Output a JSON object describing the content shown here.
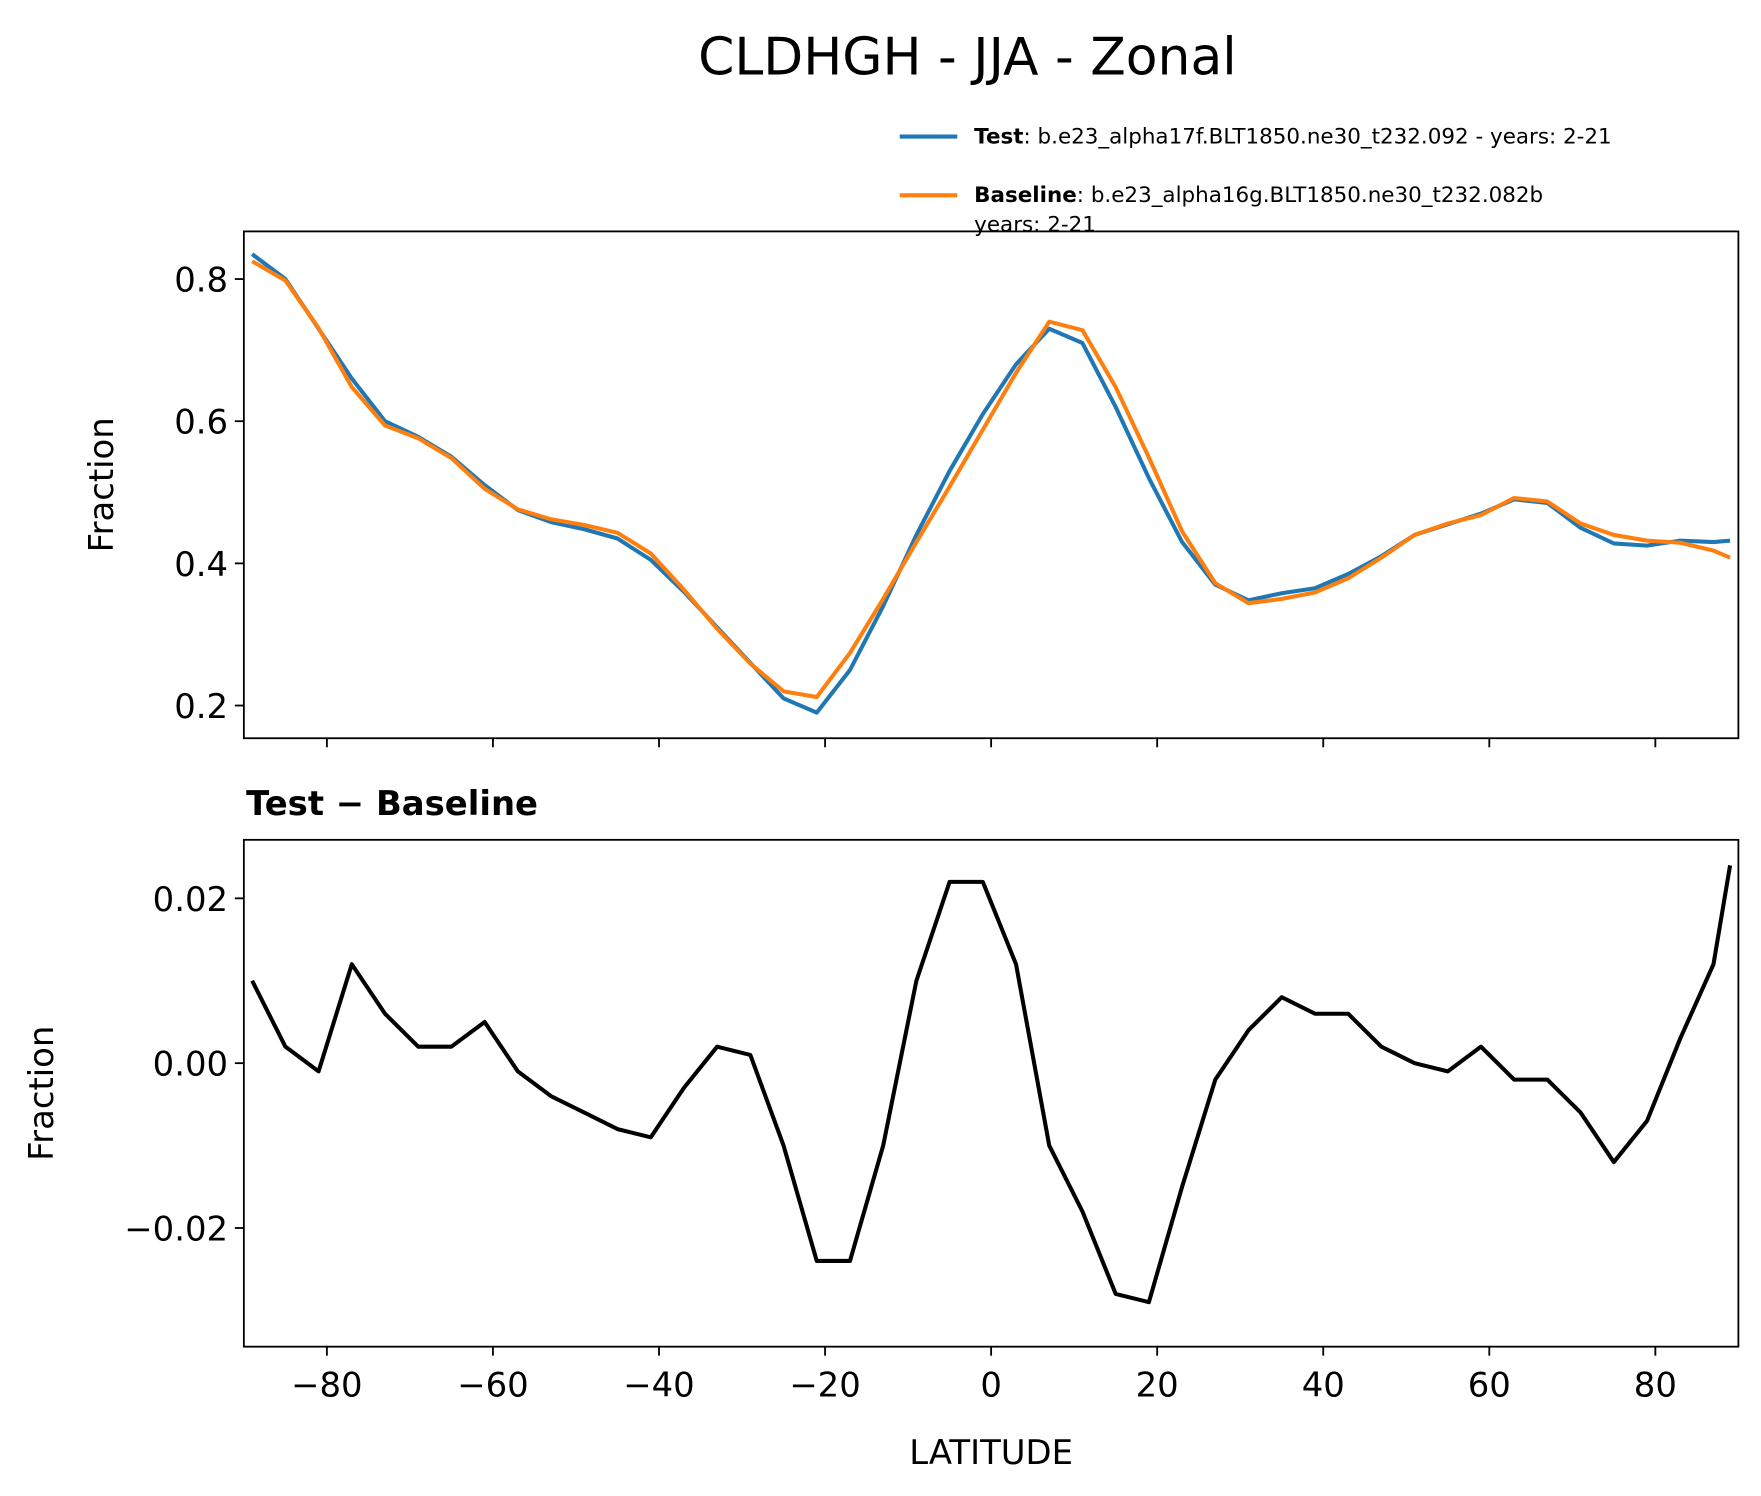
{
  "chart_data": [
    {
      "type": "line",
      "title": "CLDHGH - JJA - Zonal",
      "ylabel": "Fraction",
      "legend": "above right",
      "xticklabels": false,
      "x": [
        -89,
        -85,
        -81,
        -77,
        -73,
        -69,
        -65,
        -61,
        -57,
        -53,
        -49,
        -45,
        -41,
        -37,
        -33,
        -29,
        -25,
        -21,
        -17,
        -13,
        -9,
        -5,
        -1,
        3,
        7,
        11,
        15,
        19,
        23,
        27,
        31,
        35,
        39,
        43,
        47,
        51,
        55,
        59,
        63,
        67,
        71,
        75,
        79,
        83,
        87,
        89
      ],
      "series": [
        {
          "name": "Test",
          "description": [
            ": b.e23_alpha17f.BLT1850.ne30_t232.092 - years: 2-21"
          ],
          "color": "#1f77b4",
          "values": [
            0.835,
            0.8,
            0.73,
            0.66,
            0.6,
            0.578,
            0.55,
            0.51,
            0.475,
            0.458,
            0.448,
            0.435,
            0.405,
            0.36,
            0.31,
            0.26,
            0.21,
            0.19,
            0.25,
            0.34,
            0.44,
            0.53,
            0.61,
            0.68,
            0.73,
            0.71,
            0.62,
            0.52,
            0.43,
            0.37,
            0.348,
            0.358,
            0.365,
            0.385,
            0.41,
            0.44,
            0.455,
            0.47,
            0.49,
            0.485,
            0.45,
            0.428,
            0.425,
            0.432,
            0.43,
            0.432
          ]
        },
        {
          "name": "Baseline",
          "description": [
            ": b.e23_alpha16g.BLT1850.ne30_t232.082b",
            "years: 2-21"
          ],
          "color": "#ff7f0e",
          "values": [
            0.825,
            0.798,
            0.731,
            0.648,
            0.594,
            0.576,
            0.548,
            0.505,
            0.476,
            0.462,
            0.454,
            0.443,
            0.414,
            0.363,
            0.308,
            0.259,
            0.22,
            0.212,
            0.274,
            0.35,
            0.43,
            0.508,
            0.588,
            0.668,
            0.74,
            0.728,
            0.648,
            0.549,
            0.445,
            0.372,
            0.344,
            0.35,
            0.359,
            0.379,
            0.408,
            0.44,
            0.456,
            0.468,
            0.492,
            0.487,
            0.456,
            0.44,
            0.432,
            0.429,
            0.418,
            0.408
          ]
        }
      ],
      "xlim": [
        -90,
        90
      ],
      "xticks": [
        -80,
        -60,
        -40,
        -20,
        0,
        20,
        40,
        60,
        80
      ],
      "ylim": [
        0.154,
        0.867
      ],
      "yticks": [
        0.2,
        0.4,
        0.6,
        0.8
      ]
    },
    {
      "type": "line",
      "title": "Test − Baseline",
      "xlabel": "LATITUDE",
      "ylabel": "Fraction",
      "x": [
        -89,
        -85,
        -81,
        -77,
        -73,
        -69,
        -65,
        -61,
        -57,
        -53,
        -49,
        -45,
        -41,
        -37,
        -33,
        -29,
        -25,
        -21,
        -17,
        -13,
        -9,
        -5,
        -1,
        3,
        7,
        11,
        15,
        19,
        23,
        27,
        31,
        35,
        39,
        43,
        47,
        51,
        55,
        59,
        63,
        67,
        71,
        75,
        79,
        83,
        87,
        89
      ],
      "series": [
        {
          "color": "#000000",
          "values": [
            0.01,
            0.002,
            -0.001,
            0.012,
            0.006,
            0.002,
            0.002,
            0.005,
            -0.001,
            -0.004,
            -0.006,
            -0.008,
            -0.009,
            -0.003,
            0.002,
            0.001,
            -0.01,
            -0.024,
            -0.024,
            -0.01,
            0.01,
            0.022,
            0.022,
            0.012,
            -0.01,
            -0.018,
            -0.028,
            -0.029,
            -0.015,
            -0.002,
            0.004,
            0.008,
            0.006,
            0.006,
            0.002,
            0.0,
            -0.001,
            0.002,
            -0.002,
            -0.002,
            -0.006,
            -0.012,
            -0.007,
            0.003,
            0.012,
            0.024
          ]
        }
      ],
      "xlim": [
        -90,
        90
      ],
      "xticks": [
        {
          "value": -80,
          "label": "−80"
        },
        {
          "value": -60,
          "label": "−60"
        },
        {
          "value": -40,
          "label": "−40"
        },
        {
          "value": -20,
          "label": "−20"
        },
        0,
        20,
        40,
        60,
        80
      ],
      "ylim": [
        -0.0344,
        0.0271
      ],
      "yticks": [
        {
          "value": -0.02,
          "label": "−0.02"
        },
        {
          "value": 0,
          "label": "0.00"
        },
        0.02
      ]
    }
  ]
}
